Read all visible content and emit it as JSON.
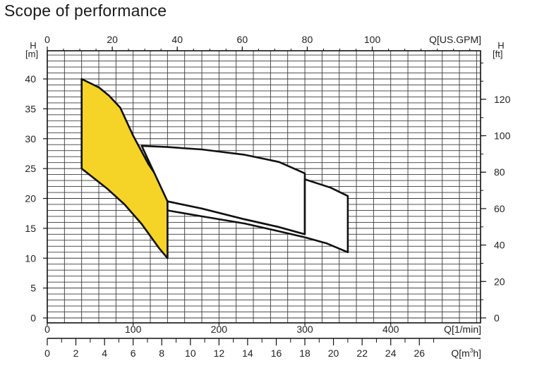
{
  "chart_data": {
    "type": "area",
    "title": "Scope of performance",
    "axes": {
      "h_m": {
        "label": "H",
        "unit": "[m]",
        "range": [
          0,
          45
        ],
        "ticks": [
          "0",
          "5",
          "10",
          "15",
          "20",
          "25",
          "30",
          "35",
          "40"
        ]
      },
      "h_ft": {
        "label": "H",
        "unit": "[ft]",
        "ticks": [
          "0",
          "20",
          "40",
          "60",
          "80",
          "100",
          "120"
        ],
        "tick_values_m": [
          0,
          6.1,
          12.2,
          18.3,
          24.4,
          30.5,
          36.6
        ]
      },
      "q_lmin": {
        "label": "Q[1/min]",
        "range": [
          0,
          500
        ],
        "ticks": [
          "0",
          "100",
          "200",
          "300",
          "400"
        ]
      },
      "q_usgpm": {
        "label": "Q[US.GPM]",
        "ticks": [
          "0",
          "20",
          "40",
          "60",
          "80",
          "100"
        ],
        "tick_values_lmin": [
          0,
          75.7,
          151.4,
          227.1,
          302.8,
          378.5
        ]
      },
      "q_m3h": {
        "label": "Q[m",
        "label_sup": "3",
        "label_end": "h]",
        "ticks": [
          "0",
          "2",
          "4",
          "6",
          "8",
          "10",
          "12",
          "14",
          "16",
          "18",
          "20",
          "22",
          "24",
          "26"
        ],
        "tick_values_lmin": [
          0,
          33.3,
          66.7,
          100,
          133.3,
          166.7,
          200,
          233.3,
          266.7,
          300,
          333.3,
          366.7,
          400,
          433.3
        ]
      }
    },
    "grid": true,
    "series": [
      {
        "fill": "#f5d327",
        "points": [
          [
            40,
            25
          ],
          [
            70,
            21.6
          ],
          [
            90,
            19
          ],
          [
            110,
            15.7
          ],
          [
            130,
            11.7
          ],
          [
            140,
            10
          ],
          [
            140,
            21
          ],
          [
            118,
            25.7
          ],
          [
            100,
            30.5
          ],
          [
            85,
            35.2
          ],
          [
            72,
            37.2
          ],
          [
            60,
            38.6
          ],
          [
            40,
            40
          ]
        ]
      },
      {
        "fill": "#ffffff",
        "points": [
          [
            110,
            28.8
          ],
          [
            140,
            28.6
          ],
          [
            180,
            28.2
          ],
          [
            230,
            27.3
          ],
          [
            270,
            26.1
          ],
          [
            300,
            24.2
          ],
          [
            300,
            14
          ],
          [
            270,
            15.2
          ],
          [
            230,
            16.5
          ],
          [
            180,
            18.3
          ],
          [
            140,
            19.5
          ]
        ]
      },
      {
        "fill": "#ffffff",
        "points": [
          [
            300,
            23.2
          ],
          [
            330,
            21.8
          ],
          [
            350,
            20.4
          ],
          [
            350,
            11
          ],
          [
            325,
            12.5
          ],
          [
            300,
            13.5
          ],
          [
            270,
            14.5
          ],
          [
            230,
            15.8
          ],
          [
            180,
            17
          ],
          [
            140,
            18
          ],
          [
            140,
            19.5
          ],
          [
            180,
            18.3
          ],
          [
            230,
            16.5
          ],
          [
            270,
            15.2
          ],
          [
            300,
            14
          ]
        ]
      }
    ]
  }
}
